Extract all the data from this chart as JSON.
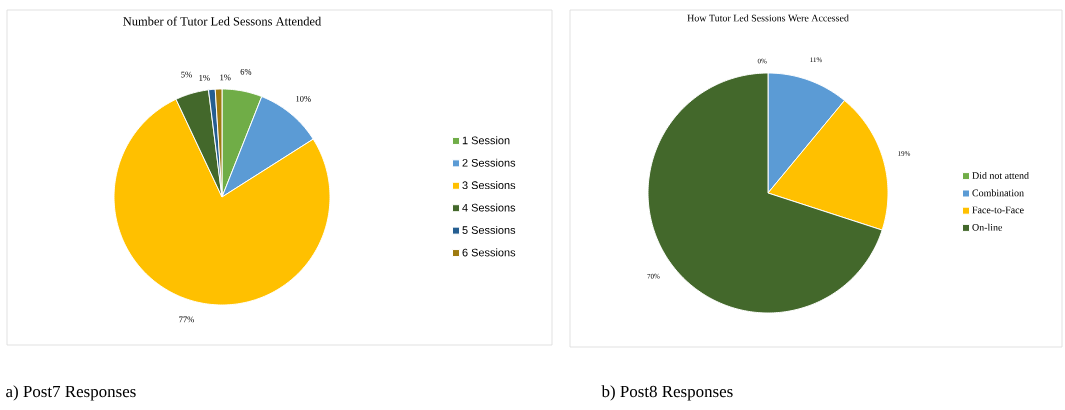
{
  "chart_data": [
    {
      "type": "pie",
      "title": "Number of Tutor Led Sessons Attended",
      "categories": [
        "1 Session",
        "2 Sessions",
        "3 Sessions",
        "4 Sessions",
        "5 Sessions",
        "6 Sessions"
      ],
      "values": [
        6,
        10,
        77,
        5,
        1,
        1
      ],
      "colors": [
        "#70ad47",
        "#5b9bd5",
        "#ffc000",
        "#43682b",
        "#255e91",
        "#9e7a0f"
      ],
      "value_labels": [
        "6%",
        "10%",
        "77%",
        "5%",
        "1%",
        "1%"
      ],
      "legend": "right",
      "annotations": [
        "a) Post7 Responses"
      ]
    },
    {
      "type": "pie",
      "title": "How Tutor Led Sessions Were Accessed",
      "categories": [
        "Did not attend",
        "Combination",
        "Face-to-Face",
        "On-line"
      ],
      "values": [
        0,
        11,
        19,
        70
      ],
      "colors": [
        "#70ad47",
        "#5b9bd5",
        "#ffc000",
        "#43682b"
      ],
      "value_labels": [
        "0%",
        "11%",
        "19%",
        "70%"
      ],
      "legend": "right",
      "annotations": [
        "b) Post8 Responses"
      ]
    }
  ]
}
